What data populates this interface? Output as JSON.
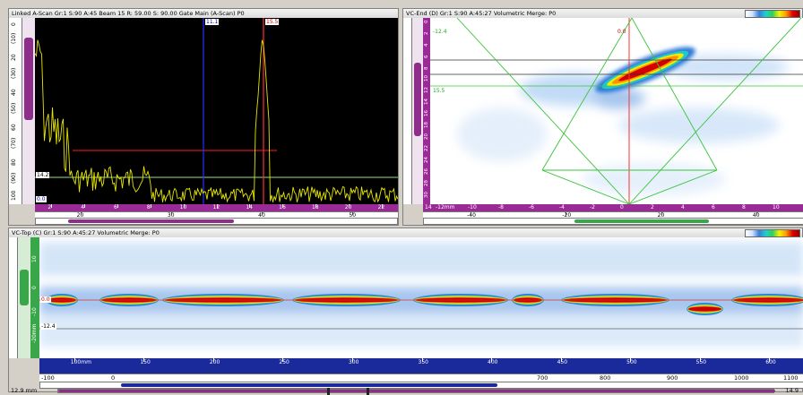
{
  "ascan": {
    "title": "Linked A-Scan Gr:1 S:90 A:45 Beam 15 R: 59.00 S: 90.00 Gate Main (A-Scan) P0",
    "marker_left": "11.1",
    "marker_right": "15.5",
    "gate_label": "14.2",
    "zero_label": "0.0",
    "vruler_labels": [
      "100",
      "(90)",
      "80",
      "(70)",
      "60",
      "(50)",
      "40",
      "(30)",
      "20",
      "(10)",
      "0"
    ],
    "hruler_labels": [
      "2",
      "4",
      "6",
      "8",
      "10",
      "12",
      "14",
      "16",
      "18",
      "20",
      "22"
    ],
    "scale_labels": [
      "20",
      "30",
      "40",
      "50"
    ]
  },
  "vc_end": {
    "title": "VC-End (D) Gr:1 S:90 A:45:27 Volumetric Merge: P0",
    "cursor_top": "0.0",
    "label_upper": "-12.4",
    "label_mid": "15.5",
    "hruler_prefix": "14",
    "hruler_unit": "-12mm",
    "hruler_labels": [
      "-10",
      "-8",
      "-6",
      "-4",
      "-2",
      "0",
      "2",
      "4",
      "6",
      "8",
      "10"
    ],
    "scale_labels": [
      "-40",
      "-20",
      "20",
      "40"
    ],
    "vruler_labels": [
      "0",
      "2",
      "4",
      "6",
      "8",
      "10",
      "12",
      "14",
      "16",
      "18",
      "20",
      "22",
      "24",
      "26",
      "28",
      "30"
    ]
  },
  "vc_top": {
    "title": "VC-Top (C) Gr:1 S:90 A:45:27 Volumetric Merge: P0",
    "label_zero": "0.0",
    "label_low": "-12.4",
    "vruler_labels": [
      "10",
      "0",
      "-10",
      "-20mm"
    ],
    "hruler_labels": [
      "100mm",
      "150",
      "200",
      "250",
      "300",
      "350",
      "400",
      "450",
      "500",
      "550",
      "600"
    ],
    "scale_labels": [
      "-100",
      "0",
      "700",
      "800",
      "900",
      "1000",
      "1100"
    ],
    "status_left": "12.9 mm",
    "status_right": "14.9"
  },
  "colors": {
    "ascan_bg": "#000000",
    "trace": "#e6e600",
    "gate": "#ff2020",
    "cursor_blue": "#2020ff",
    "cursor_green": "#9be07a",
    "cscan_defect": "#c80000",
    "accent": "#9a2a96"
  }
}
